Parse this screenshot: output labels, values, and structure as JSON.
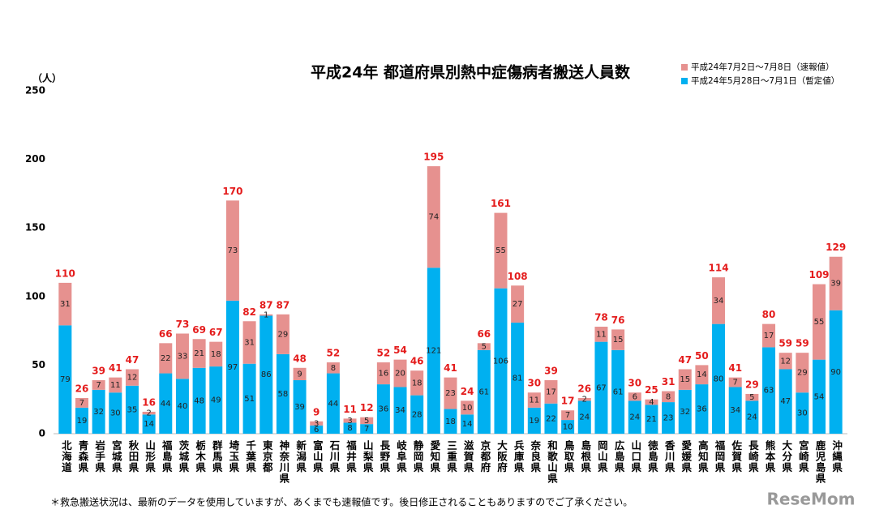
{
  "chart_data": {
    "type": "stacked-bar",
    "title": "平成24年  都道府県別熱中症傷病者搬送人員数",
    "y_unit": "（人）",
    "footnote": "＊救急搬送状況は、最新のデータを使用していますが、あくまでも速報値です。後日修正されることもありますのでご了承ください。",
    "watermark": "ReseMom",
    "categories": [
      "北海道",
      "青森県",
      "岩手県",
      "宮城県",
      "秋田県",
      "山形県",
      "福島県",
      "茨城県",
      "栃木県",
      "群馬県",
      "埼玉県",
      "千葉県",
      "東京都",
      "神奈川県",
      "新潟県",
      "富山県",
      "石川県",
      "福井県",
      "山梨県",
      "長野県",
      "岐阜県",
      "静岡県",
      "愛知県",
      "三重県",
      "滋賀県",
      "京都府",
      "大阪府",
      "兵庫県",
      "奈良県",
      "和歌山県",
      "鳥取県",
      "島根県",
      "岡山県",
      "広島県",
      "山口県",
      "徳島県",
      "香川県",
      "愛媛県",
      "高知県",
      "福岡県",
      "佐賀県",
      "長崎県",
      "熊本県",
      "大分県",
      "宮崎県",
      "鹿児島県",
      "沖縄県"
    ],
    "series": [
      {
        "name": "平成24年5月28日～7月1日（暫定値）",
        "color": "#00b0f0",
        "values": [
          79,
          19,
          32,
          30,
          35,
          14,
          44,
          40,
          48,
          49,
          97,
          51,
          86,
          58,
          39,
          6,
          44,
          8,
          7,
          36,
          34,
          28,
          121,
          18,
          14,
          61,
          106,
          81,
          19,
          22,
          10,
          24,
          67,
          61,
          24,
          21,
          23,
          32,
          36,
          80,
          34,
          24,
          63,
          47,
          30,
          54,
          90
        ]
      },
      {
        "name": "平成24年7月2日～7月8日（速報値）",
        "color": "#e6918f",
        "values": [
          31,
          7,
          7,
          11,
          12,
          2,
          22,
          33,
          21,
          18,
          73,
          31,
          1,
          29,
          9,
          3,
          8,
          3,
          5,
          16,
          20,
          18,
          74,
          23,
          10,
          5,
          55,
          27,
          11,
          17,
          7,
          2,
          11,
          15,
          6,
          4,
          8,
          15,
          14,
          34,
          7,
          5,
          17,
          12,
          29,
          55,
          39
        ]
      }
    ],
    "totals": [
      110,
      26,
      39,
      41,
      47,
      16,
      66,
      73,
      69,
      67,
      170,
      82,
      87,
      87,
      48,
      9,
      52,
      11,
      12,
      52,
      54,
      46,
      195,
      41,
      24,
      66,
      161,
      108,
      30,
      39,
      17,
      26,
      78,
      76,
      30,
      25,
      31,
      47,
      50,
      114,
      41,
      29,
      80,
      59,
      59,
      109,
      129
    ],
    "ylim": [
      0,
      250
    ],
    "yticks": [
      0,
      50,
      100,
      150,
      200,
      250
    ],
    "grid": false,
    "legend": "top-right"
  }
}
